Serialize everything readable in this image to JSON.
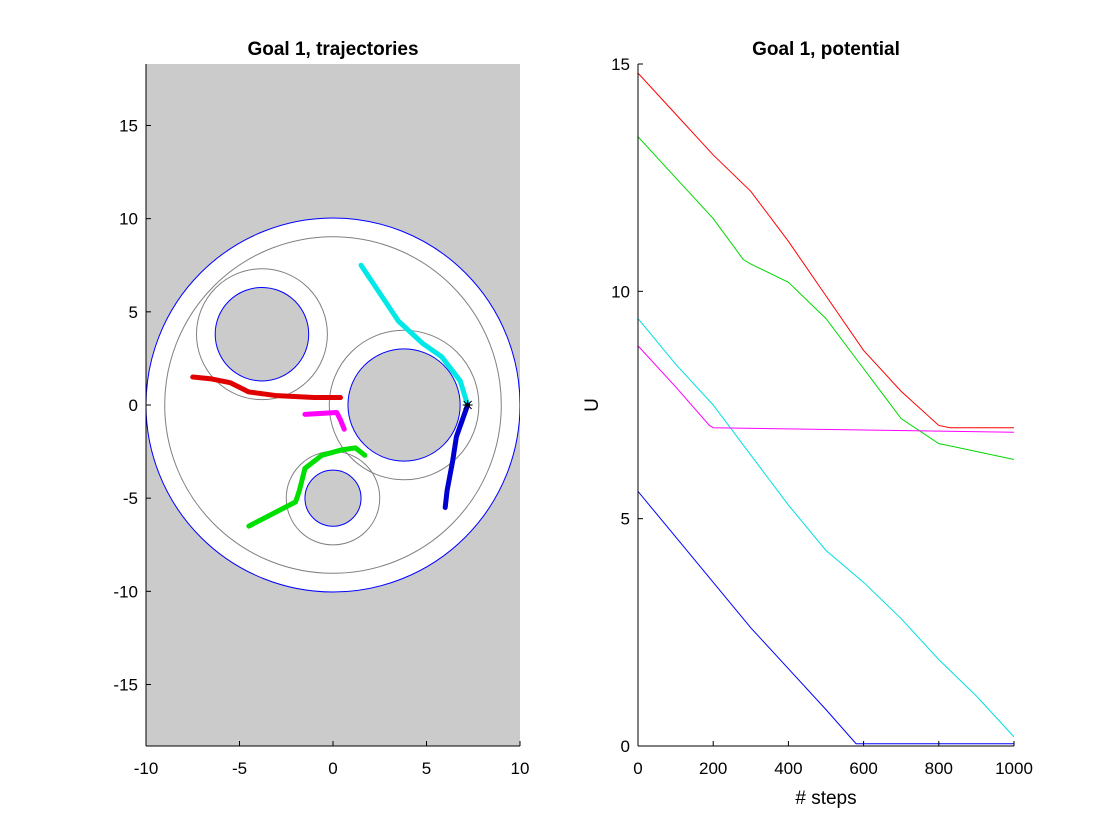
{
  "figure": {
    "left_title": "Goal 1, trajectories",
    "right_title": "Goal 1, potential"
  },
  "chart_data": [
    {
      "type": "line",
      "title": "Goal 1, trajectories",
      "xlabel": "",
      "ylabel": "",
      "xlim": [
        -10,
        10
      ],
      "ylim": [
        -18.3,
        18.3
      ],
      "xticks": [
        -10,
        -5,
        0,
        5,
        10
      ],
      "yticks": [
        -15,
        -10,
        -5,
        0,
        5,
        10,
        15
      ],
      "x_tick_labels": [
        "-10",
        "-5",
        "0",
        "5",
        "10"
      ],
      "y_tick_labels": [
        "-15",
        "-10",
        "-5",
        "0",
        "5",
        "10",
        "15"
      ],
      "background": "#cbcbcb",
      "workspace": {
        "center": [
          0,
          0
        ],
        "radius": 10,
        "inner_ring_radius": 9
      },
      "obstacles": [
        {
          "center": [
            -3.8,
            3.8
          ],
          "radius": 2.5,
          "ring_radius": 3.5
        },
        {
          "center": [
            3.8,
            0
          ],
          "radius": 3.0,
          "ring_radius": 4.0
        },
        {
          "center": [
            0,
            -5
          ],
          "radius": 1.5,
          "ring_radius": 2.5
        }
      ],
      "goal": [
        7.2,
        0
      ],
      "series": [
        {
          "color": "#e00000",
          "x": [
            -7.5,
            -6.5,
            -5.5,
            -4.5,
            -3,
            -1,
            0.4
          ],
          "y": [
            1.5,
            1.4,
            1.2,
            0.7,
            0.5,
            0.4,
            0.4
          ]
        },
        {
          "color": "#ff00ff",
          "x": [
            -1.5,
            0.2,
            0.4,
            0.6
          ],
          "y": [
            -0.5,
            -0.4,
            -0.8,
            -1.3
          ]
        },
        {
          "color": "#00e000",
          "x": [
            -4.5,
            -2,
            -1.8,
            -1.5,
            -0.6,
            0.5,
            1.2,
            1.7
          ],
          "y": [
            -6.5,
            -5.2,
            -4.6,
            -3.4,
            -2.7,
            -2.4,
            -2.3,
            -2.7
          ]
        },
        {
          "color": "#00e8e8",
          "x": [
            1.5,
            3.5,
            4.8,
            5.8,
            6.8,
            7.2
          ],
          "y": [
            7.5,
            4.5,
            3.3,
            2.6,
            1.3,
            0
          ]
        },
        {
          "color": "#0000d0",
          "x": [
            7.2,
            6.6,
            6.4,
            6.1,
            6.0
          ],
          "y": [
            0,
            -1.7,
            -3.0,
            -4.6,
            -5.5
          ]
        }
      ]
    },
    {
      "type": "line",
      "title": "Goal 1, potential",
      "xlabel": "# steps",
      "ylabel": "U",
      "xlim": [
        0,
        1000
      ],
      "ylim": [
        0,
        15
      ],
      "xticks": [
        0,
        200,
        400,
        600,
        800,
        1000
      ],
      "yticks": [
        0,
        5,
        10,
        15
      ],
      "x_tick_labels": [
        "0",
        "200",
        "400",
        "600",
        "800",
        "1000"
      ],
      "y_tick_labels": [
        "0",
        "5",
        "10",
        "15"
      ],
      "series": [
        {
          "color": "#ff0000",
          "x": [
            0,
            100,
            200,
            300,
            400,
            500,
            600,
            700,
            800,
            830,
            1000
          ],
          "y": [
            14.8,
            13.9,
            13.0,
            12.2,
            11.1,
            9.9,
            8.7,
            7.8,
            7.05,
            7.0,
            7.0
          ]
        },
        {
          "color": "#00d800",
          "x": [
            0,
            100,
            200,
            280,
            300,
            400,
            500,
            600,
            700,
            800,
            830,
            1000
          ],
          "y": [
            13.4,
            12.5,
            11.6,
            10.7,
            10.6,
            10.2,
            9.4,
            8.3,
            7.2,
            6.65,
            6.6,
            6.3
          ]
        },
        {
          "color": "#00e0e0",
          "x": [
            0,
            100,
            200,
            300,
            400,
            500,
            600,
            700,
            800,
            900,
            1000
          ],
          "y": [
            9.4,
            8.4,
            7.5,
            6.4,
            5.3,
            4.3,
            3.6,
            2.8,
            1.9,
            1.1,
            0.2
          ]
        },
        {
          "color": "#ff00ff",
          "x": [
            0,
            100,
            190,
            200,
            1000
          ],
          "y": [
            8.8,
            7.9,
            7.05,
            7.0,
            6.9
          ]
        },
        {
          "color": "#0000ff",
          "x": [
            0,
            100,
            200,
            300,
            400,
            500,
            580,
            1000
          ],
          "y": [
            5.6,
            4.6,
            3.6,
            2.6,
            1.7,
            0.8,
            0.05,
            0.05
          ]
        }
      ]
    }
  ]
}
